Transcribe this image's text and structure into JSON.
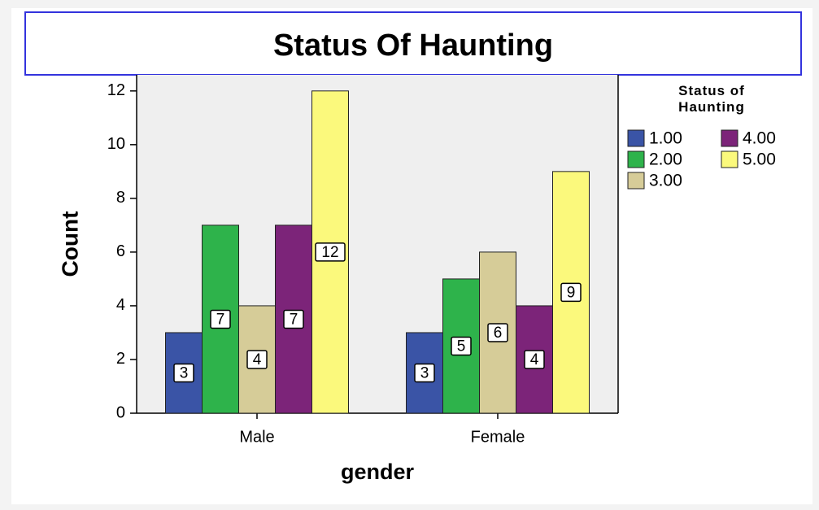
{
  "chart_data": {
    "type": "bar",
    "title": "Status Of Haunting",
    "x_label": "gender",
    "y_label": "Count",
    "legend_title": "Status of Haunting",
    "categories": [
      "Male",
      "Female"
    ],
    "series": [
      {
        "name": "1.00",
        "color": "#3a54a6",
        "values": [
          3,
          3
        ]
      },
      {
        "name": "2.00",
        "color": "#2eb34b",
        "values": [
          7,
          5
        ]
      },
      {
        "name": "3.00",
        "color": "#d6cc98",
        "values": [
          4,
          6
        ]
      },
      {
        "name": "4.00",
        "color": "#7c2479",
        "values": [
          7,
          4
        ]
      },
      {
        "name": "5.00",
        "color": "#fbf97c",
        "values": [
          12,
          9
        ]
      }
    ],
    "ylim": [
      0,
      12.6
    ],
    "yticks": [
      0,
      2,
      4,
      6,
      8,
      10,
      12
    ]
  }
}
